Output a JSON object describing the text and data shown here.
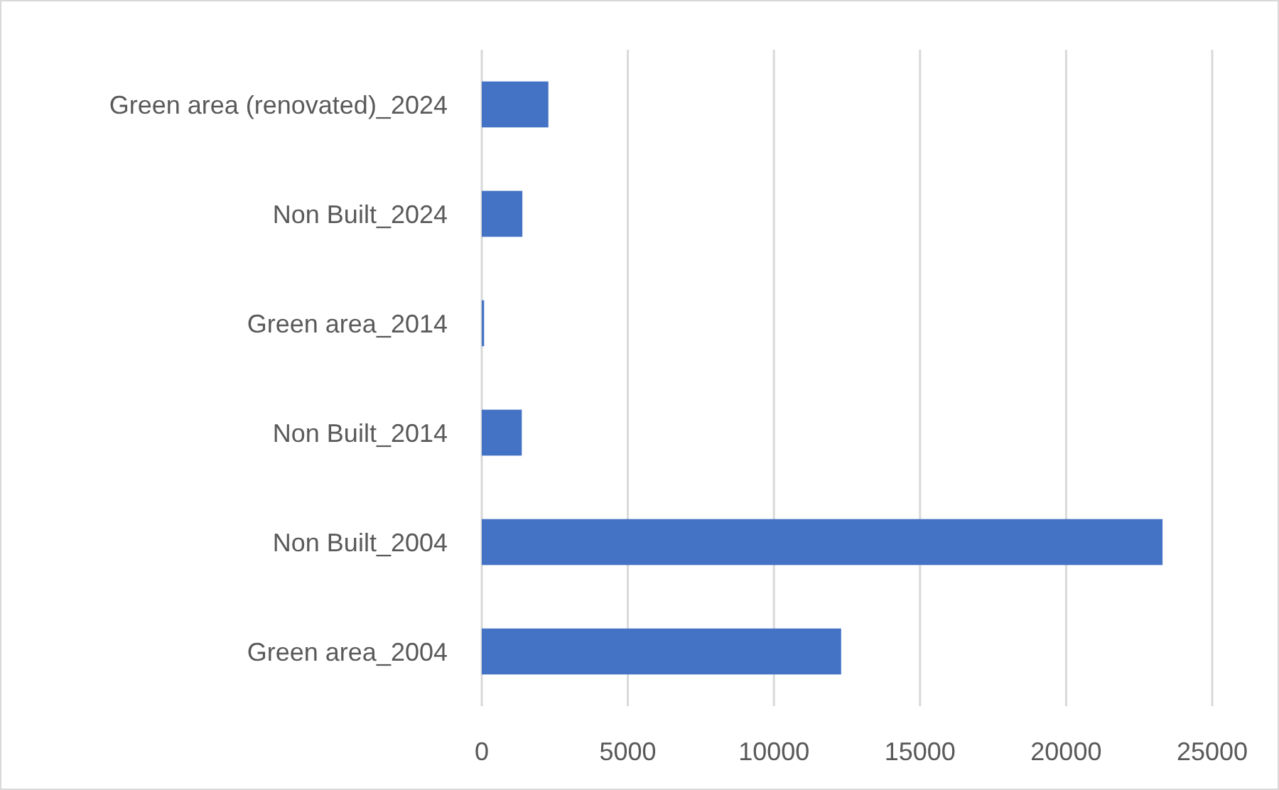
{
  "chart_data": {
    "type": "bar",
    "orientation": "horizontal",
    "categories": [
      "Green area (renovated)_2024",
      "Non Built_2024",
      "Green area_2014",
      "Non Built_2014",
      "Non Built_2004",
      "Green area_2004"
    ],
    "values": [
      2280,
      1390,
      80,
      1370,
      23300,
      12300
    ],
    "color": "#4472c4",
    "xlim": [
      0,
      25000
    ],
    "xticks": [
      0,
      5000,
      10000,
      15000,
      20000,
      25000
    ],
    "grid": "x"
  }
}
